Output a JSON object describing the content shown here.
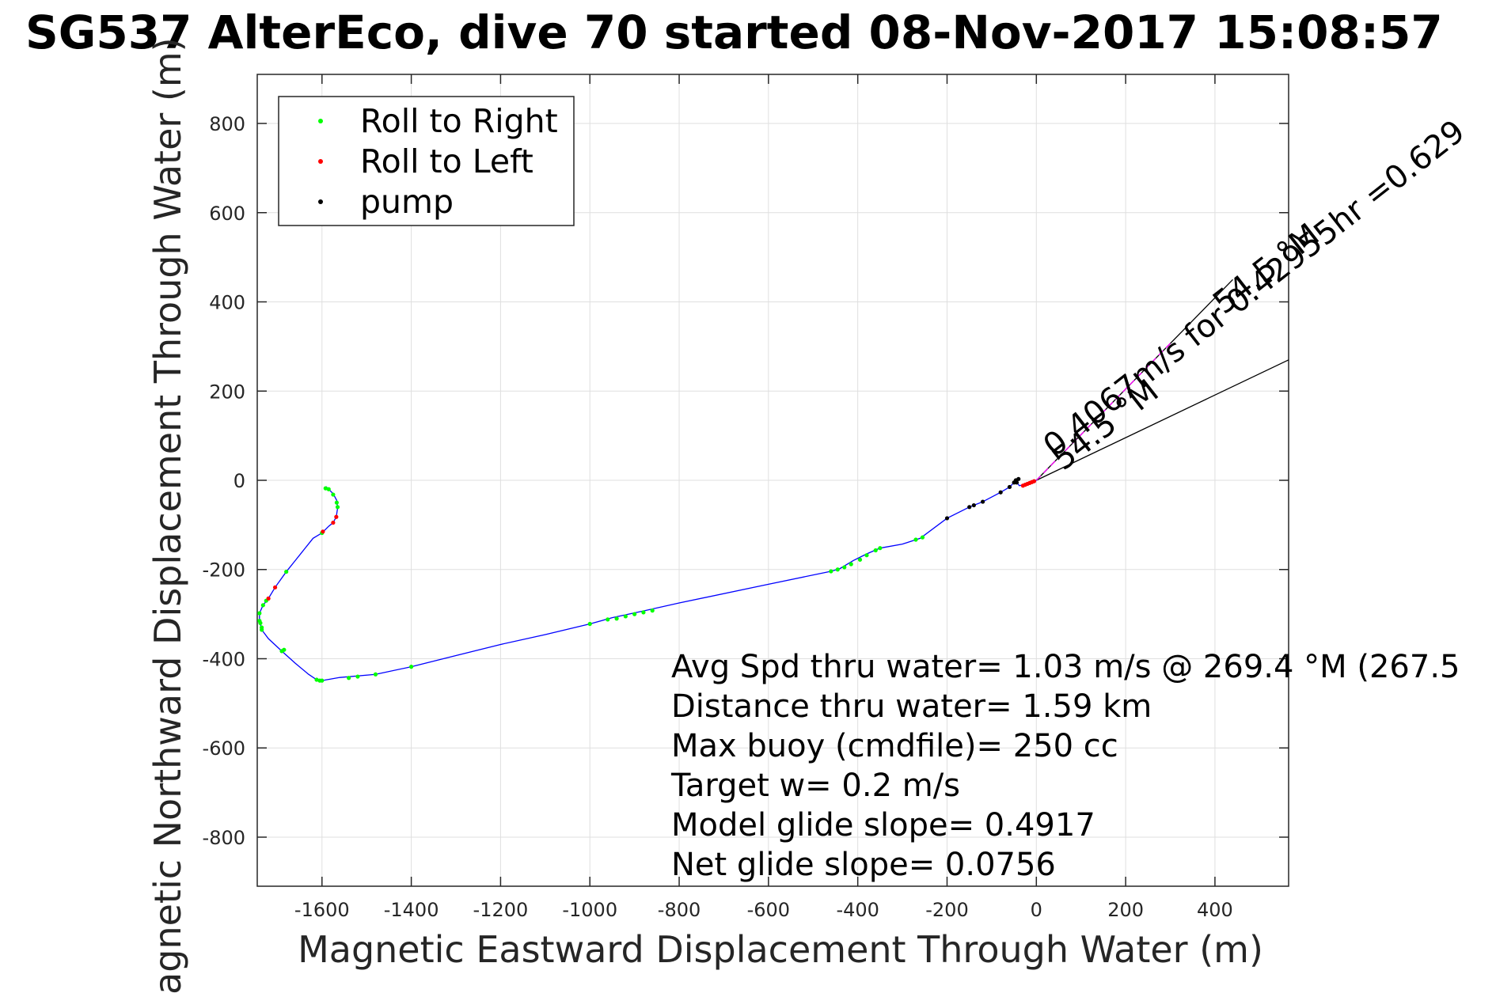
{
  "chart_data": {
    "type": "line",
    "title": "SG537 AlterEco, dive 70 started 08-Nov-2017 15:08:57",
    "xlabel": "Magnetic Eastward Displacement Through Water (m)",
    "ylabel": "Magnetic Northward Displacement Through Water (m)",
    "xlim": [
      -1745,
      565
    ],
    "ylim": [
      -910,
      910
    ],
    "xticks": [
      -1600,
      -1400,
      -1200,
      -1000,
      -800,
      -600,
      -400,
      -200,
      0,
      200,
      400
    ],
    "yticks": [
      800,
      600,
      400,
      200,
      0,
      -200,
      -400,
      -600,
      -800
    ],
    "grid": true,
    "legend": {
      "placement": "top-left",
      "entries": [
        "Roll to Right",
        "Roll to Left",
        "pump"
      ]
    },
    "colors": {
      "track": "#0000ff",
      "roll_right": "#00ff00",
      "roll_left": "#ff0000",
      "pump": "#000000",
      "projection_segment": "#ff00ff",
      "cone": "#000000"
    },
    "track": [
      [
        0,
        0
      ],
      [
        -20,
        -8
      ],
      [
        -38,
        -12
      ],
      [
        -44,
        -5
      ],
      [
        -40,
        3
      ],
      [
        -46,
        0
      ],
      [
        -50,
        -5
      ],
      [
        -60,
        -15
      ],
      [
        -80,
        -27
      ],
      [
        -120,
        -48
      ],
      [
        -150,
        -60
      ],
      [
        -200,
        -85
      ],
      [
        -260,
        -130
      ],
      [
        -300,
        -143
      ],
      [
        -350,
        -152
      ],
      [
        -380,
        -165
      ],
      [
        -410,
        -180
      ],
      [
        -440,
        -198
      ],
      [
        -460,
        -204
      ],
      [
        -600,
        -233
      ],
      [
        -800,
        -275
      ],
      [
        -880,
        -293
      ],
      [
        -950,
        -308
      ],
      [
        -1000,
        -322
      ],
      [
        -1100,
        -346
      ],
      [
        -1200,
        -368
      ],
      [
        -1300,
        -393
      ],
      [
        -1400,
        -418
      ],
      [
        -1480,
        -435
      ],
      [
        -1560,
        -442
      ],
      [
        -1600,
        -449
      ],
      [
        -1612,
        -447
      ],
      [
        -1630,
        -435
      ],
      [
        -1660,
        -410
      ],
      [
        -1690,
        -383
      ],
      [
        -1720,
        -355
      ],
      [
        -1735,
        -335
      ],
      [
        -1740,
        -315
      ],
      [
        -1740,
        -298
      ],
      [
        -1732,
        -280
      ],
      [
        -1720,
        -265
      ],
      [
        -1705,
        -240
      ],
      [
        -1680,
        -205
      ],
      [
        -1660,
        -180
      ],
      [
        -1640,
        -155
      ],
      [
        -1620,
        -130
      ],
      [
        -1600,
        -118
      ],
      [
        -1585,
        -103
      ],
      [
        -1575,
        -95
      ],
      [
        -1568,
        -82
      ],
      [
        -1565,
        -62
      ],
      [
        -1567,
        -45
      ],
      [
        -1575,
        -30
      ],
      [
        -1585,
        -20
      ],
      [
        -1590,
        -15
      ],
      [
        -1592,
        -18
      ]
    ],
    "roll_right": [
      [
        -1592,
        -18
      ],
      [
        -1585,
        -20
      ],
      [
        -1575,
        -32
      ],
      [
        -1567,
        -50
      ],
      [
        -1565,
        -60
      ],
      [
        -1600,
        -118
      ],
      [
        -1680,
        -205
      ],
      [
        -1732,
        -280
      ],
      [
        -1740,
        -298
      ],
      [
        -1740,
        -315
      ],
      [
        -1735,
        -335
      ],
      [
        -1690,
        -383
      ],
      [
        -1685,
        -380
      ],
      [
        -1612,
        -447
      ],
      [
        -1600,
        -449
      ],
      [
        -1605,
        -449
      ],
      [
        -1540,
        -443
      ],
      [
        -1520,
        -440
      ],
      [
        -1480,
        -435
      ],
      [
        -1400,
        -418
      ],
      [
        -1000,
        -322
      ],
      [
        -960,
        -312
      ],
      [
        -940,
        -310
      ],
      [
        -920,
        -305
      ],
      [
        -900,
        -300
      ],
      [
        -880,
        -296
      ],
      [
        -860,
        -292
      ],
      [
        -460,
        -204
      ],
      [
        -445,
        -200
      ],
      [
        -430,
        -195
      ],
      [
        -415,
        -188
      ],
      [
        -395,
        -178
      ],
      [
        -380,
        -168
      ],
      [
        -360,
        -157
      ],
      [
        -350,
        -152
      ],
      [
        -270,
        -133
      ],
      [
        -255,
        -128
      ],
      [
        -1725,
        -270
      ],
      [
        -1735,
        -330
      ],
      [
        -1738,
        -320
      ]
    ],
    "roll_left": [
      [
        -1575,
        -95
      ],
      [
        -1568,
        -82
      ],
      [
        -1705,
        -240
      ],
      [
        -1720,
        -265
      ],
      [
        -1598,
        -115
      ],
      [
        -30,
        -12
      ],
      [
        -25,
        -10
      ],
      [
        -20,
        -8
      ],
      [
        -15,
        -6
      ],
      [
        -10,
        -4
      ],
      [
        -5,
        -2
      ]
    ],
    "pump": [
      [
        -44,
        -5
      ],
      [
        -40,
        3
      ],
      [
        -46,
        0
      ],
      [
        -50,
        -5
      ],
      [
        -60,
        -15
      ],
      [
        -80,
        -27
      ],
      [
        -120,
        -48
      ],
      [
        -140,
        -56
      ],
      [
        -150,
        -60
      ],
      [
        -200,
        -85
      ]
    ],
    "projection_segment": [
      [
        0,
        0
      ],
      [
        305,
        312
      ]
    ],
    "cone": [
      [
        [
          0,
          0
        ],
        [
          440,
          450
        ]
      ],
      [
        [
          0,
          0
        ],
        [
          565,
          270
        ]
      ]
    ],
    "annotations": [
      {
        "text": "0.4067m/s for 0.42955hr =0.629",
        "x": 40,
        "y": 50,
        "angle_deg": -38
      },
      {
        "text": "54.5 °M",
        "x": 60,
        "y": 20,
        "angle_deg": -38
      },
      {
        "text": "54.5 °M",
        "x": 420,
        "y": 370,
        "angle_deg": -38
      }
    ],
    "stats": [
      "Avg Spd thru water=  1.03 m/s @ 269.4 °M (267.5",
      "Distance thru water=  1.59 km",
      "Max buoy (cmdfile)= 250 cc",
      "Target w= 0.2 m/s",
      "Model glide slope= 0.4917",
      "Net glide slope= 0.0756"
    ]
  }
}
